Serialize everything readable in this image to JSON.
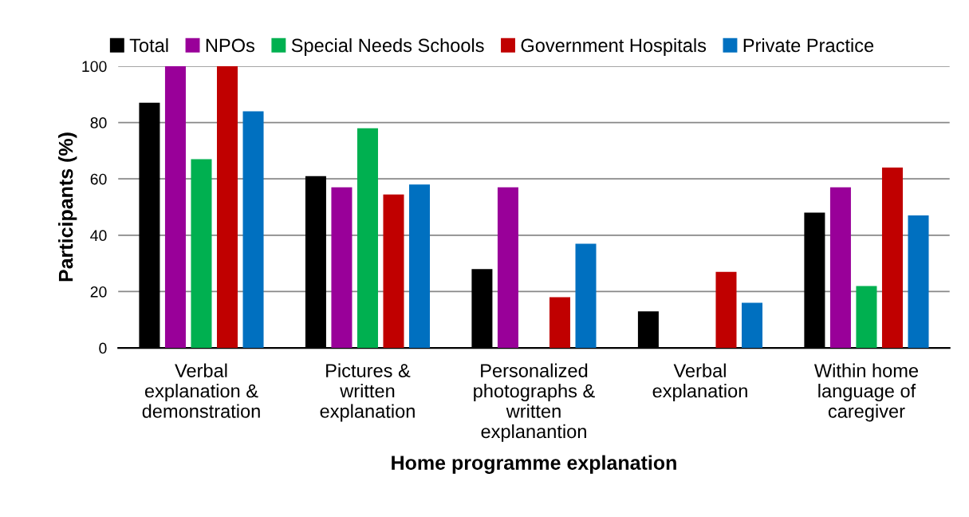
{
  "chart_data": {
    "type": "bar",
    "xlabel": "Home programme explanation",
    "ylabel": "Participants (%)",
    "categories": [
      "Verbal\nexplanation &\ndemonstration",
      "Pictures &\nwritten\nexplanation",
      "Personalized\nphotographs &\nwritten\nexplanantion",
      "Verbal\nexplanation",
      "Within home\nlanguage of\ncaregiver"
    ],
    "series": [
      {
        "name": "Total",
        "color": "#000000",
        "values": [
          87,
          61,
          28,
          13,
          48
        ]
      },
      {
        "name": "NPOs",
        "color": "#990099",
        "values": [
          100,
          57,
          57,
          0,
          57
        ]
      },
      {
        "name": "Special Needs Schools",
        "color": "#00b050",
        "values": [
          67,
          78,
          0,
          0,
          22
        ]
      },
      {
        "name": "Government Hospitals",
        "color": "#c00000",
        "values": [
          100,
          54.5,
          18,
          27,
          64
        ]
      },
      {
        "name": "Private Practice",
        "color": "#0070c0",
        "values": [
          84,
          58,
          37,
          16,
          47
        ]
      }
    ],
    "ylim": [
      0,
      100
    ],
    "yticks": [
      0,
      20,
      40,
      60,
      80,
      100
    ],
    "grid": "y",
    "legend": "top"
  }
}
